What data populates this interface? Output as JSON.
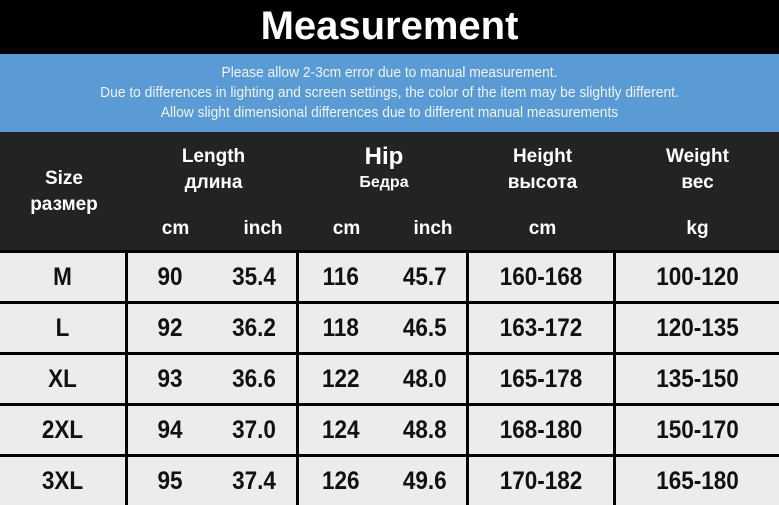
{
  "title": "Measurement",
  "notes": [
    "Please allow 2-3cm error due to manual measurement.",
    "Due to differences in lighting and screen settings, the color of the item may be slightly different.",
    "Allow slight dimensional differences due to different manual measurements"
  ],
  "header": {
    "size": {
      "en": "Size",
      "ru": "размер"
    },
    "length": {
      "en": "Length",
      "ru": "длина",
      "units": [
        "cm",
        "inch"
      ]
    },
    "hip": {
      "en": "Hip",
      "ru": "Бедра",
      "units": [
        "cm",
        "inch"
      ]
    },
    "height": {
      "en": "Height",
      "ru": "высота",
      "units": [
        "cm"
      ]
    },
    "weight": {
      "en": "Weight",
      "ru": "вес",
      "units": [
        "kg"
      ]
    }
  },
  "rows": [
    [
      "M",
      "90",
      "35.4",
      "116",
      "45.7",
      "160-168",
      "100-120"
    ],
    [
      "L",
      "92",
      "36.2",
      "118",
      "46.5",
      "163-172",
      "120-135"
    ],
    [
      "XL",
      "93",
      "36.6",
      "122",
      "48.0",
      "165-178",
      "135-150"
    ],
    [
      "2XL",
      "94",
      "37.0",
      "124",
      "48.8",
      "168-180",
      "150-170"
    ],
    [
      "3XL",
      "95",
      "37.4",
      "126",
      "49.6",
      "170-182",
      "165-180"
    ]
  ]
}
